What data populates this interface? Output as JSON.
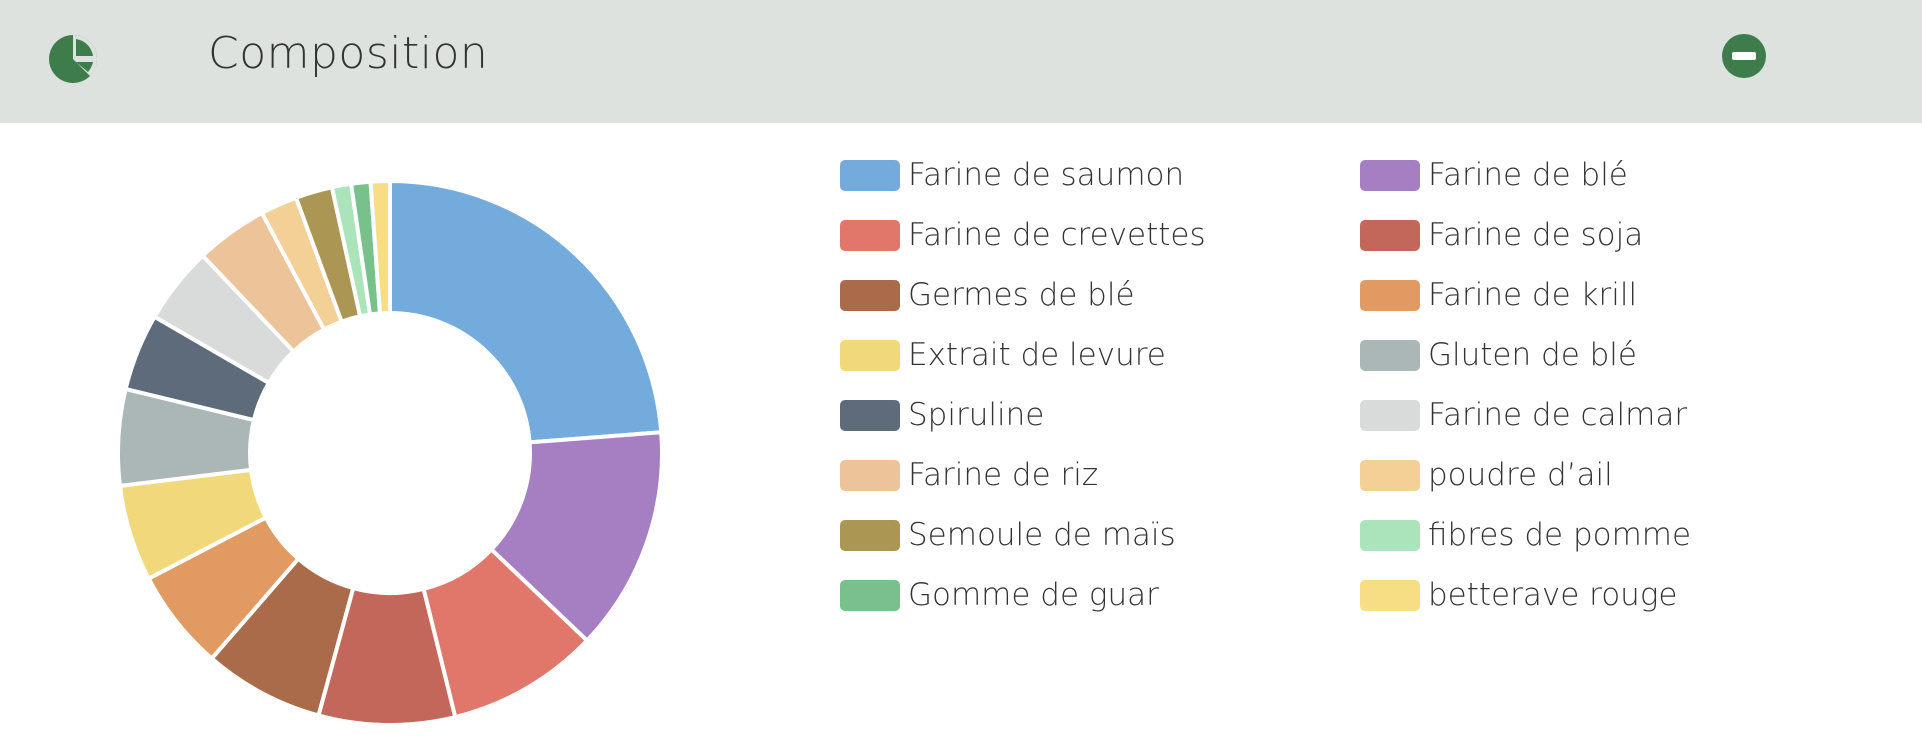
{
  "header": {
    "title": "Composition",
    "icon": "pie-chart-icon",
    "action_icon": "minus-circle-icon",
    "accent_color": "#3e7d4b",
    "background_color": "#dde2df"
  },
  "chart_data": {
    "type": "pie",
    "donut": true,
    "title": "",
    "legend_position": "right",
    "categories": [
      "Farine de saumon",
      "Farine de blé",
      "Farine de crevettes",
      "Farine de soja",
      "Germes de blé",
      "Farine de krill",
      "Extrait de levure",
      "Gluten de blé",
      "Spiruline",
      "Farine de calmar",
      "Farine de riz",
      "poudre d’ail",
      "Semoule de maïs",
      "fibres de pomme",
      "Gomme de guar",
      "betterave rouge"
    ],
    "values": [
      25,
      14,
      9.5,
      8.5,
      7.5,
      6.3,
      6,
      6,
      4.8,
      4.8,
      4.5,
      2.3,
      2.3,
      1.2,
      1.2,
      1.2
    ],
    "colors": [
      "#74abdd",
      "#a67fc3",
      "#e0776a",
      "#c3675b",
      "#a96b49",
      "#e19a61",
      "#f1d97b",
      "#abb6b6",
      "#5e6b7b",
      "#d9dbdb",
      "#edc39a",
      "#f2d096",
      "#ab9654",
      "#abe3bb",
      "#78c18c",
      "#f7de84"
    ]
  }
}
